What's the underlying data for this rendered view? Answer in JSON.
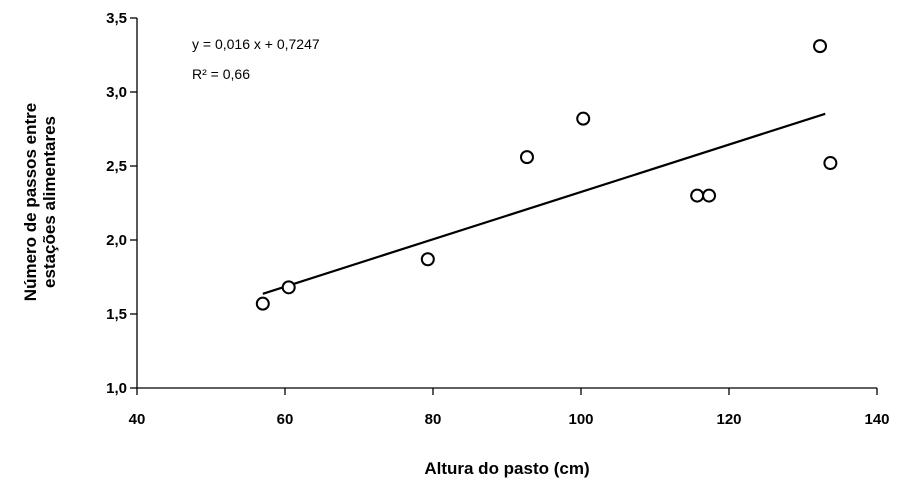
{
  "chart_data": {
    "type": "scatter",
    "xlabel": "Altura do pasto (cm)",
    "ylabel_lines": [
      "Número de passos entre",
      "estações alimentares"
    ],
    "xlim": [
      40,
      140
    ],
    "ylim": [
      1.0,
      3.5
    ],
    "x_ticks": [
      40,
      60,
      80,
      100,
      120,
      140
    ],
    "y_ticks": [
      1.0,
      1.5,
      2.0,
      2.5,
      3.0,
      3.5
    ],
    "x_tick_labels": [
      "40",
      "60",
      "80",
      "100",
      "120",
      "140"
    ],
    "y_tick_labels": [
      "1,0",
      "1,5",
      "2,0",
      "2,5",
      "3,0",
      "3,5"
    ],
    "grid": false,
    "points": [
      {
        "x": 57.0,
        "y": 1.57
      },
      {
        "x": 60.5,
        "y": 1.68
      },
      {
        "x": 79.3,
        "y": 1.87
      },
      {
        "x": 92.7,
        "y": 2.56
      },
      {
        "x": 100.3,
        "y": 2.82
      },
      {
        "x": 115.7,
        "y": 2.3
      },
      {
        "x": 117.3,
        "y": 2.3
      },
      {
        "x": 132.3,
        "y": 3.31
      },
      {
        "x": 133.7,
        "y": 2.52
      }
    ],
    "trendline": {
      "slope": 0.016,
      "intercept": 0.7247,
      "x_range": [
        57,
        133
      ]
    },
    "annotations": {
      "equation": "y = 0,016 x + 0,7247",
      "r_squared": "R² = 0,66"
    }
  }
}
